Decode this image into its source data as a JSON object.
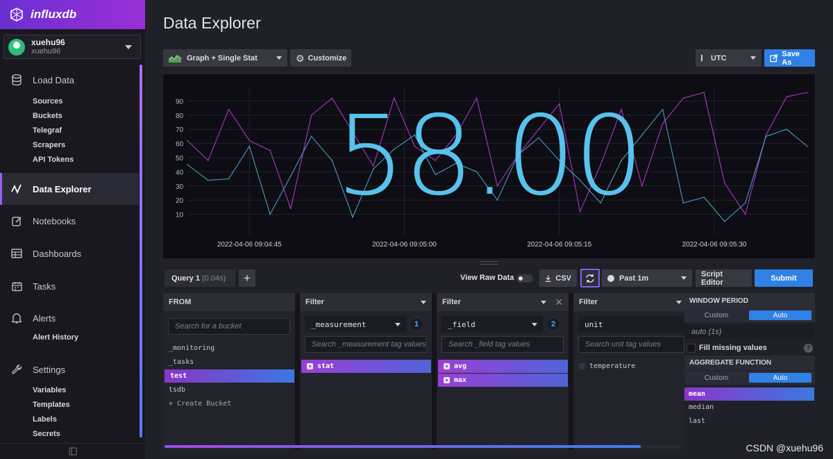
{
  "brand": {
    "name": "influxdb"
  },
  "user": {
    "name": "xuehu96",
    "org": "xuehu96"
  },
  "sidebar": {
    "sections": [
      {
        "label": "Load Data",
        "icon": "database-icon",
        "items": [
          "Sources",
          "Buckets",
          "Telegraf",
          "Scrapers",
          "API Tokens"
        ]
      },
      {
        "label": "Data Explorer",
        "icon": "graph-line-icon",
        "active": true,
        "items": []
      },
      {
        "label": "Notebooks",
        "icon": "notebook-icon",
        "items": []
      },
      {
        "label": "Dashboards",
        "icon": "dashboard-grid-icon",
        "items": []
      },
      {
        "label": "Tasks",
        "icon": "calendar-icon",
        "items": []
      },
      {
        "label": "Alerts",
        "icon": "bell-icon",
        "items": [
          "Alert History"
        ]
      },
      {
        "label": "Settings",
        "icon": "wrench-icon",
        "items": [
          "Variables",
          "Templates",
          "Labels",
          "Secrets"
        ]
      }
    ]
  },
  "page": {
    "title": "Data Explorer"
  },
  "toolbar": {
    "viz_type": "Graph + Single Stat",
    "customize": "Customize",
    "timezone": "UTC",
    "save_as": "Save As"
  },
  "graph": {
    "single_stat": "58.00",
    "y_ticks": [
      "90",
      "80",
      "70",
      "60",
      "50",
      "40",
      "30",
      "20",
      "10"
    ],
    "x_ticks": [
      "2022-04-06 09:04:45",
      "2022-04-06 09:05:00",
      "2022-04-06 09:05:15",
      "2022-04-06 09:05:30"
    ],
    "colors": {
      "max": "#b236c9",
      "avg": "#4aa0c8",
      "stat": "#5bc8f5"
    }
  },
  "chart_data": {
    "type": "line",
    "ylim": [
      0,
      100
    ],
    "x": [
      "09:04:39",
      "09:04:41",
      "09:04:43",
      "09:04:45",
      "09:04:47",
      "09:04:49",
      "09:04:51",
      "09:04:53",
      "09:04:55",
      "09:04:57",
      "09:04:59",
      "09:05:01",
      "09:05:03",
      "09:05:05",
      "09:05:07",
      "09:05:09",
      "09:05:11",
      "09:05:13",
      "09:05:15",
      "09:05:17",
      "09:05:19",
      "09:05:21",
      "09:05:23",
      "09:05:25",
      "09:05:27",
      "09:05:29",
      "09:05:31",
      "09:05:33",
      "09:05:35",
      "09:05:37",
      "09:05:39"
    ],
    "series": [
      {
        "name": "max",
        "values": [
          62,
          48,
          84,
          62,
          55,
          14,
          80,
          92,
          68,
          44,
          92,
          58,
          48,
          66,
          92,
          30,
          52,
          70,
          88,
          12,
          45,
          84,
          30,
          74,
          92,
          96,
          32,
          10,
          66,
          93,
          96
        ]
      },
      {
        "name": "avg",
        "values": [
          45,
          34,
          35,
          58,
          10,
          37,
          65,
          48,
          8,
          42,
          56,
          66,
          38,
          46,
          40,
          20,
          52,
          64,
          48,
          34,
          18,
          48,
          66,
          84,
          18,
          22,
          5,
          18,
          65,
          70,
          58
        ]
      }
    ]
  },
  "query": {
    "tab": "Query 1",
    "time": "(0.04s)",
    "add": "+",
    "view_raw": "View Raw Data",
    "csv": "CSV",
    "time_range": "Past 1m",
    "script_editor": "Script Editor",
    "submit": "Submit"
  },
  "from_card": {
    "title": "FROM",
    "search_placeholder": "Search for a bucket",
    "buckets": [
      "_monitoring",
      "_tasks",
      "test",
      "tsdb",
      "+ Create Bucket"
    ],
    "selected": "test"
  },
  "filters": [
    {
      "title": "Filter",
      "key": "_measurement",
      "count": "1",
      "search_placeholder": "Search _measurement tag values",
      "values": [
        {
          "label": "stat",
          "on": true
        }
      ]
    },
    {
      "title": "Filter",
      "key": "_field",
      "count": "2",
      "search_placeholder": "Search _field tag values",
      "values": [
        {
          "label": "avg",
          "on": true
        },
        {
          "label": "max",
          "on": true
        }
      ]
    },
    {
      "title": "Filter",
      "key": "unit",
      "count": "",
      "search_placeholder": "Search unit tag values",
      "values": [
        {
          "label": "temperature",
          "on": false
        }
      ]
    }
  ],
  "aggregate": {
    "window_title": "WINDOW PERIOD",
    "custom": "Custom",
    "auto": "Auto",
    "window_value": "auto (1s)",
    "fill_missing": "Fill missing values",
    "help": "?",
    "fn_title": "AGGREGATE FUNCTION",
    "functions": [
      "mean",
      "median",
      "last"
    ],
    "selected": "mean"
  },
  "watermark": "CSDN @xuehu96"
}
